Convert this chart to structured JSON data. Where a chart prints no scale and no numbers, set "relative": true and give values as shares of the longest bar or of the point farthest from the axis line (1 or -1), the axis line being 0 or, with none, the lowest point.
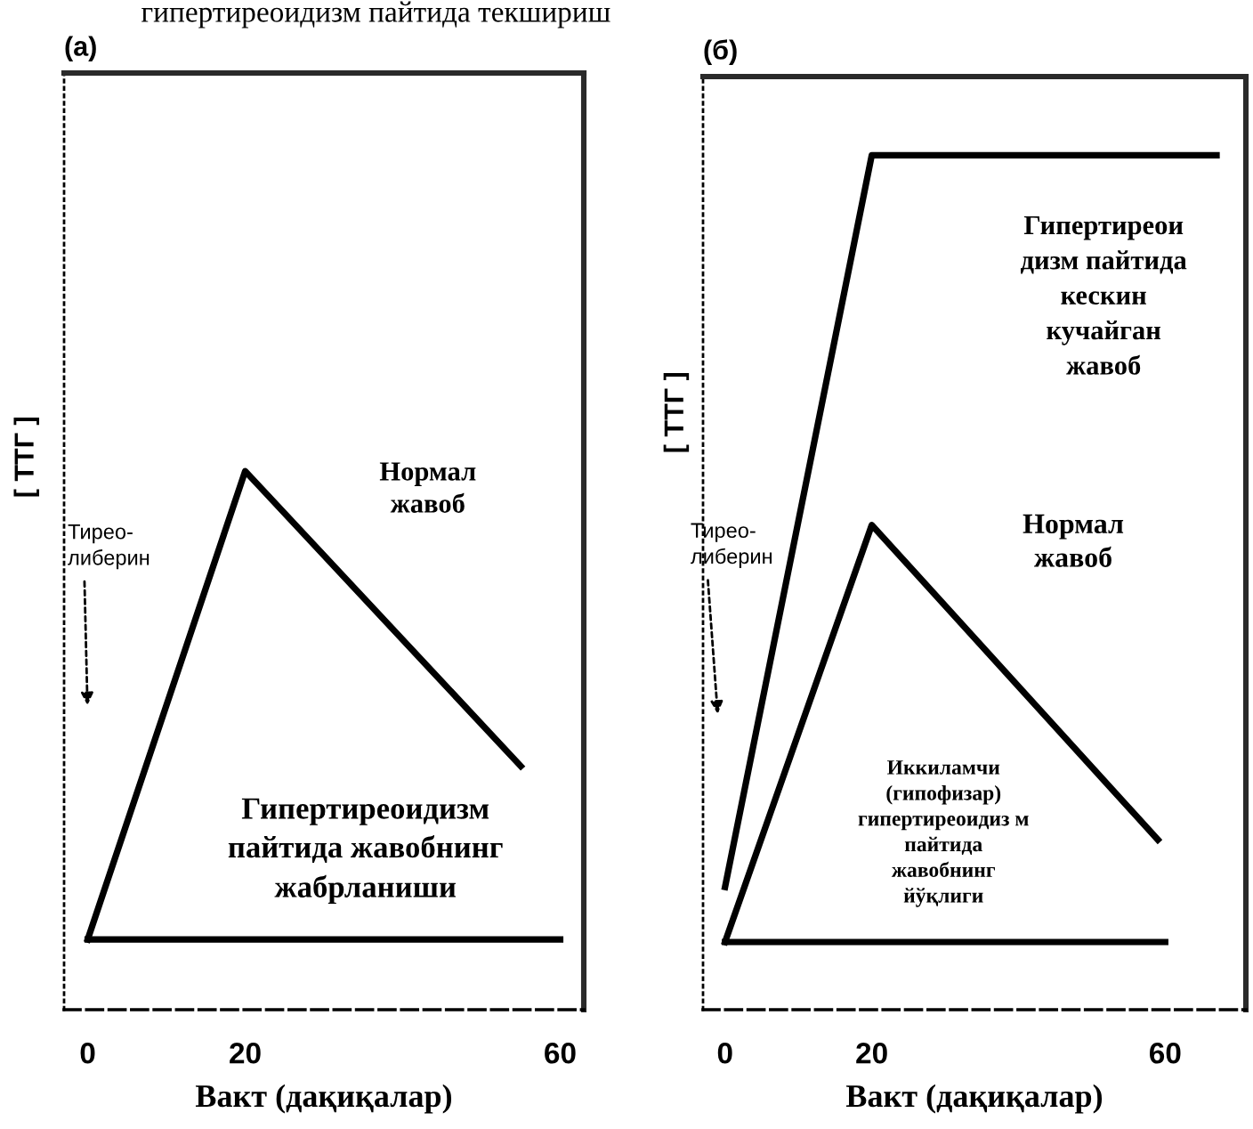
{
  "chart_data": [
    {
      "type": "line",
      "title": "(а)",
      "xlabel": "Вакт (дақиқалар)",
      "ylabel": "[ ТТГ ]",
      "relative": true,
      "xlim": [
        -3,
        63
      ],
      "xticks": [
        0,
        20,
        60
      ],
      "series": [
        {
          "name": "Нормал\nжавоб",
          "color": "#000000",
          "x": [
            0,
            20,
            55
          ],
          "values": [
            0,
            1,
            0.37
          ]
        },
        {
          "name": "Гипертиреоидизм\nпайтида жавобнинг\nжабрланиши",
          "color": "#000000",
          "x": [
            0,
            60
          ],
          "values": [
            0,
            0
          ]
        }
      ],
      "annotations": [
        "гипертиреоидизм пайтида текшириш",
        "Тирео-\nлиберин"
      ]
    },
    {
      "type": "line",
      "title": "(б)",
      "xlabel": "Вакт (дақиқалар)",
      "ylabel": "[ ТТГ ]",
      "relative": true,
      "xlim": [
        -3,
        71
      ],
      "xticks": [
        0,
        20,
        60
      ],
      "series": [
        {
          "name": "Гипертиреои\nдизм пайтида\nкескин\nкучайган\nжавоб",
          "color": "#000000",
          "x": [
            0,
            20,
            67
          ],
          "values": [
            0.07,
            1,
            1
          ]
        },
        {
          "name": "Нормал\nжавоб",
          "color": "#000000",
          "x": [
            0,
            20,
            59
          ],
          "values": [
            0,
            0.53,
            0.13
          ]
        },
        {
          "name": "Иккиламчи\n(гипофизар)\nгипертиреоидиз м\nпайтида\nжавобнинг\nйўқлиги",
          "color": "#000000",
          "x": [
            0,
            60
          ],
          "values": [
            0,
            0
          ]
        }
      ],
      "annotations": [
        "Тирео-\nлиберин"
      ]
    }
  ]
}
